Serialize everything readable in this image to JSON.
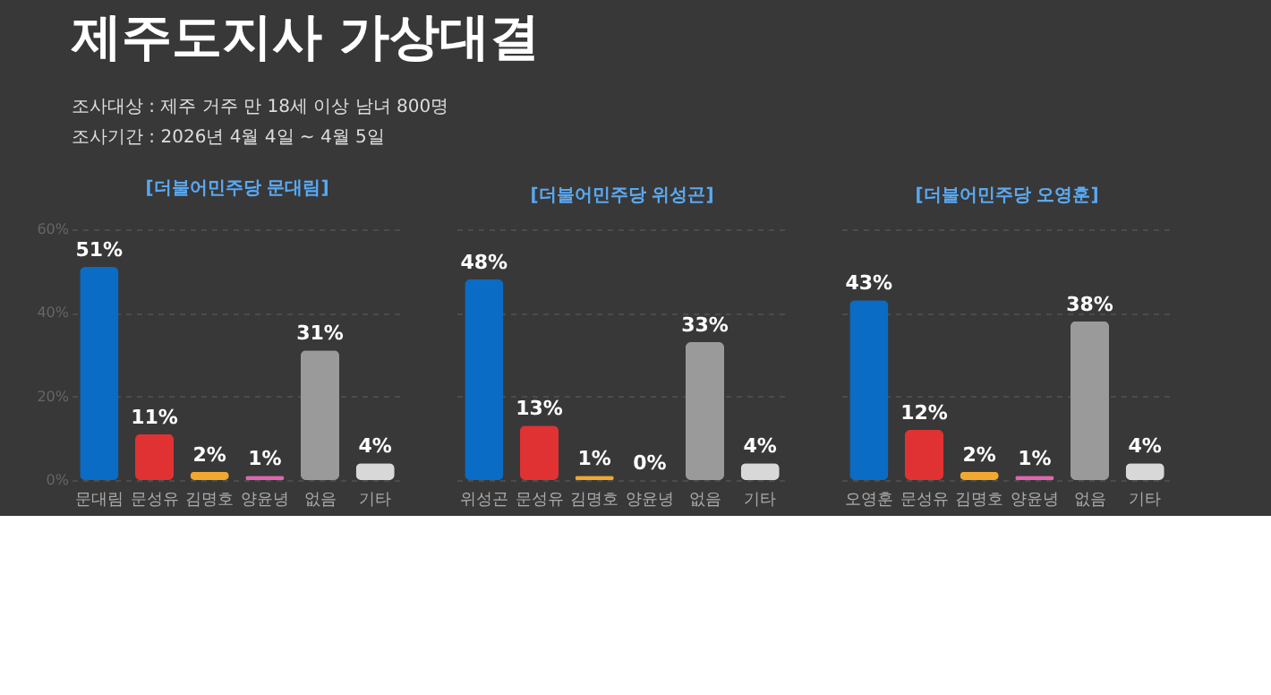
{
  "chart_data": [
    {
      "type": "other",
      "title": "제주도지사 가상대결",
      "annotations": [
        "조사대상 : 제주 거주 만 18세 이상 남녀 800명",
        "조사기간 : 2026년 4월 4일 ~ 4월 5일"
      ]
    },
    {
      "type": "bar",
      "title": "[더불어민주당 문대림]",
      "categories": [
        "문대림",
        "문성유",
        "김명호",
        "양윤녕",
        "없음",
        "기타"
      ],
      "values": [
        51,
        11,
        2,
        1,
        31,
        4
      ],
      "value_labels": [
        "51%",
        "11%",
        "2%",
        "1%",
        "31%",
        "4%"
      ],
      "colors": [
        "#0a6cc4",
        "#e03232",
        "#f0a830",
        "#e066b0",
        "#9a9a9a",
        "#d8d8d8"
      ],
      "ylim": [
        0,
        60
      ],
      "yticks": [
        {
          "value": 0,
          "label": "0%"
        },
        {
          "value": 20,
          "label": "20%"
        },
        {
          "value": 40,
          "label": "40%"
        },
        {
          "value": 60,
          "label": "60%"
        }
      ],
      "grid": "y"
    },
    {
      "type": "bar",
      "title": "[더불어민주당 위성곤]",
      "categories": [
        "위성곤",
        "문성유",
        "김명호",
        "양윤녕",
        "없음",
        "기타"
      ],
      "values": [
        48,
        13,
        1,
        0,
        33,
        4
      ],
      "value_labels": [
        "48%",
        "13%",
        "1%",
        "0%",
        "33%",
        "4%"
      ],
      "colors": [
        "#0a6cc4",
        "#e03232",
        "#f0a830",
        "#e066b0",
        "#9a9a9a",
        "#d8d8d8"
      ],
      "ylim": [
        0,
        60
      ],
      "yticks": [
        {
          "value": 0,
          "label": null
        },
        {
          "value": 20,
          "label": null
        },
        {
          "value": 40,
          "label": null
        },
        {
          "value": 60,
          "label": null
        }
      ],
      "grid": "y",
      "tick_labels": "x"
    },
    {
      "type": "bar",
      "title": "[더불어민주당 오영훈]",
      "categories": [
        "오영훈",
        "문성유",
        "김명호",
        "양윤녕",
        "없음",
        "기타"
      ],
      "values": [
        43,
        12,
        2,
        1,
        38,
        4
      ],
      "value_labels": [
        "43%",
        "12%",
        "2%",
        "1%",
        "38%",
        "4%"
      ],
      "colors": [
        "#0a6cc4",
        "#e03232",
        "#f0a830",
        "#e066b0",
        "#9a9a9a",
        "#d8d8d8"
      ],
      "ylim": [
        0,
        60
      ],
      "yticks": [
        {
          "value": 0,
          "label": null
        },
        {
          "value": 20,
          "label": null
        },
        {
          "value": 40,
          "label": null
        },
        {
          "value": 60,
          "label": null
        }
      ],
      "grid": "y",
      "tick_labels": "x"
    }
  ]
}
